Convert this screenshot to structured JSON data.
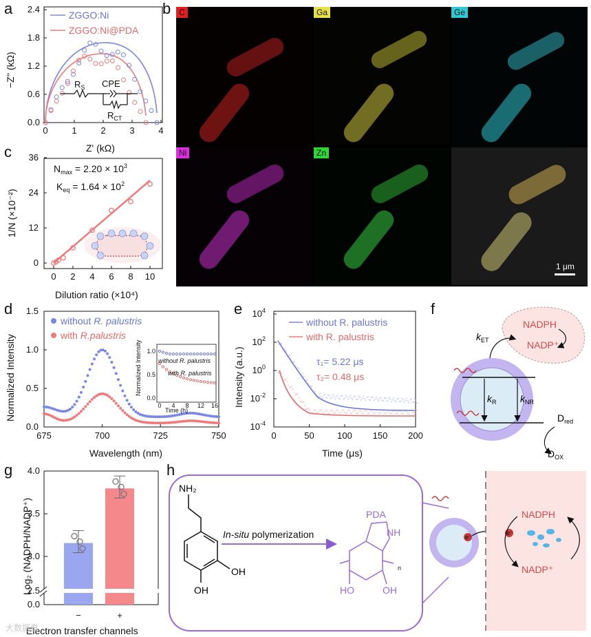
{
  "panel_labels": [
    "a",
    "b",
    "c",
    "d",
    "e",
    "f",
    "g",
    "h"
  ],
  "panel_a": {
    "legend": [
      "ZGGO:Ni",
      "ZGGO:Ni@PDA"
    ],
    "colors": [
      "#7a86e6",
      "#ec7b7b"
    ],
    "xlabel": "Z' (kΩ)",
    "ylabel": "−Z'' (kΩ)",
    "xticks": [
      "0",
      "1",
      "2",
      "3",
      "4"
    ],
    "yticks": [
      "0.0",
      "0.6",
      "1.2",
      "1.8",
      "2.4"
    ],
    "circuit": {
      "rs": "R",
      "rs_sub": "S",
      "cpe": "CPE",
      "rct": "R",
      "rct_sub": "CT"
    }
  },
  "panel_b": {
    "tiles": [
      {
        "label": "C",
        "bg": "#e02020",
        "fg": "#111"
      },
      {
        "label": "Ga",
        "bg": "#e6e04a",
        "fg": "#111"
      },
      {
        "label": "Ge",
        "bg": "#2ec9d3",
        "fg": "#111"
      },
      {
        "label": "Ni",
        "bg": "#e02ce0",
        "fg": "#111"
      },
      {
        "label": "Zn",
        "bg": "#2ed43a",
        "fg": "#111"
      },
      {
        "label": "",
        "bg": "",
        "fg": "#111"
      }
    ],
    "scalebar": "1 μm"
  },
  "panel_c": {
    "nmax": "N",
    "nmax_sub": "max",
    "nmax_val": " = 2.20 × 10",
    "nmax_exp": "3",
    "keq": "K",
    "keq_sub": "eq",
    "keq_val": " = 1.64 × 10",
    "keq_exp": "2",
    "xlabel": "Dilution ratio (×10⁴)",
    "ylabel": "1/N (×10⁻²)",
    "xticks": [
      "0",
      "2",
      "4",
      "6",
      "8",
      "10"
    ],
    "yticks": [
      "0",
      "12",
      "24",
      "36"
    ]
  },
  "panel_d": {
    "legend": [
      "without R. palustris",
      "with R.palustris"
    ],
    "legend_prefix": [
      "without ",
      "with "
    ],
    "legend_italic": [
      "R. palustris",
      "R.palustris"
    ],
    "xlabel": "Wavelength (nm)",
    "ylabel": "Normalized Intensity",
    "xticks": [
      "675",
      "700",
      "725",
      "750"
    ],
    "yticks": [
      "0.0",
      "0.5",
      "1.0",
      "1.5"
    ],
    "inset": {
      "label_top": "without R. palustris",
      "label_bottom": "with R. palustris",
      "ylabel": "Normalized Intensity",
      "xlabel": "Time (h)",
      "xticks": [
        "0",
        "4",
        "8",
        "12",
        "16"
      ],
      "yticks": [
        "1.0",
        "0.5",
        "0.0"
      ]
    }
  },
  "panel_e": {
    "legend": [
      "without R. palustris",
      "with R. palustris"
    ],
    "tau1": "τ₁= 5.22 μs",
    "tau2": "τ₂= 0.48 μs",
    "xlabel": "Time (μs)",
    "ylabel": "Intensity (a.u.)",
    "xticks": [
      "0",
      "50",
      "100",
      "150",
      "200"
    ],
    "yticks": [
      "10",
      "10",
      "10",
      "10",
      "10"
    ],
    "yexp": [
      "4",
      "2",
      "0",
      "-2",
      "-4"
    ]
  },
  "panel_f": {
    "nadph": "NADPH",
    "nadp": "NADP⁺",
    "ket": "k",
    "ket_sub": "ET",
    "kr": "k",
    "kr_sub": "R",
    "knr": "k",
    "knr_sub": "NR",
    "dred": "D",
    "dred_sub": "red",
    "dox": "D",
    "dox_sub": "OX"
  },
  "panel_g": {
    "ylabel": "Log₂ (NADPH/NADP⁺)",
    "xlabel": "Electron transfer channels",
    "categories": [
      "−",
      "+"
    ],
    "yticks": [
      "0.0",
      "2.5",
      "3.0",
      "3.5",
      "4.0"
    ],
    "values": [
      3.06,
      3.7
    ]
  },
  "panel_h": {
    "monomer_label": "NH₂",
    "oh1": "OH",
    "oh2": "OH",
    "arrow_label_italic": "In-situ",
    "arrow_label": " polymerization",
    "pda": "PDA",
    "nh": "NH",
    "ho": "HO",
    "oh3": "OH",
    "n": "n",
    "nadph": "NADPH",
    "nadp": "NADP⁺",
    "e1": "e⁻",
    "e2": "e⁻"
  },
  "watermark": "大数据看"
}
